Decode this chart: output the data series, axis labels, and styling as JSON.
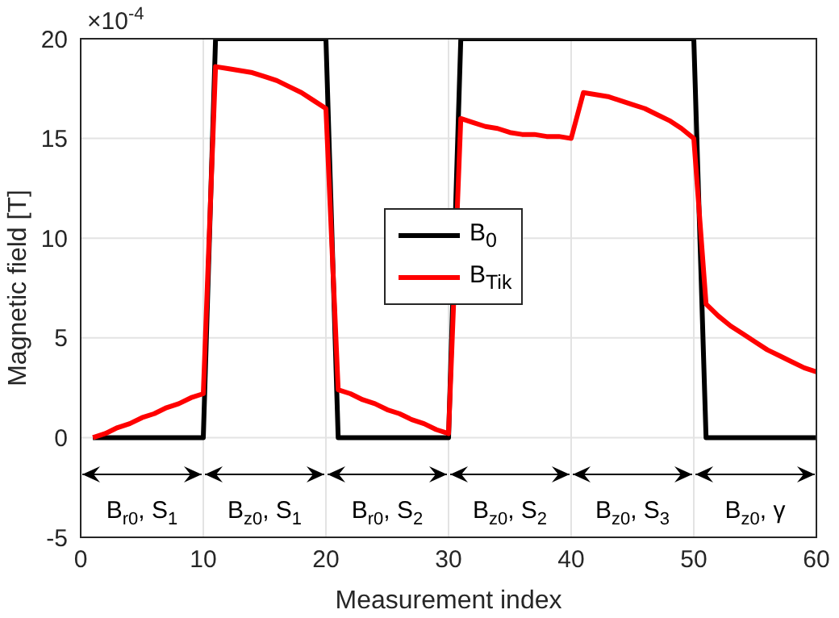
{
  "chart_data": {
    "type": "line",
    "xlabel": "Measurement index",
    "ylabel": "Magnetic field [T]",
    "x": [
      1,
      2,
      3,
      4,
      5,
      6,
      7,
      8,
      9,
      10,
      11,
      12,
      13,
      14,
      15,
      16,
      17,
      18,
      19,
      20,
      21,
      22,
      23,
      24,
      25,
      26,
      27,
      28,
      29,
      30,
      31,
      32,
      33,
      34,
      35,
      36,
      37,
      38,
      39,
      40,
      41,
      42,
      43,
      44,
      45,
      46,
      47,
      48,
      49,
      50,
      51,
      52,
      53,
      54,
      55,
      56,
      57,
      58,
      59,
      60
    ],
    "series": [
      {
        "name": "B$_{0}$",
        "color": "#000000",
        "values": [
          0,
          0,
          0,
          0,
          0,
          0,
          0,
          0,
          0,
          0,
          20,
          20,
          20,
          20,
          20,
          20,
          20,
          20,
          20,
          20,
          0,
          0,
          0,
          0,
          0,
          0,
          0,
          0,
          0,
          0,
          20,
          20,
          20,
          20,
          20,
          20,
          20,
          20,
          20,
          20,
          20,
          20,
          20,
          20,
          20,
          20,
          20,
          20,
          20,
          20,
          0,
          0,
          0,
          0,
          0,
          0,
          0,
          0,
          0,
          0
        ]
      },
      {
        "name": "B$_{Tik}$",
        "color": "#ff0000",
        "values": [
          0,
          0.2,
          0.5,
          0.7,
          1.0,
          1.2,
          1.5,
          1.7,
          2.0,
          2.2,
          18.6,
          18.5,
          18.4,
          18.3,
          18.1,
          17.9,
          17.6,
          17.3,
          16.9,
          16.5,
          2.4,
          2.2,
          1.9,
          1.7,
          1.4,
          1.2,
          0.9,
          0.7,
          0.4,
          0.2,
          16.0,
          15.8,
          15.6,
          15.5,
          15.3,
          15.2,
          15.2,
          15.1,
          15.1,
          15.0,
          17.3,
          17.2,
          17.1,
          16.9,
          16.7,
          16.5,
          16.2,
          15.9,
          15.5,
          15.0,
          6.7,
          6.1,
          5.6,
          5.2,
          4.8,
          4.4,
          4.1,
          3.8,
          3.5,
          3.3
        ]
      }
    ],
    "xlim": [
      0,
      60
    ],
    "xticks": [
      0,
      10,
      20,
      30,
      40,
      50,
      60
    ],
    "ylim": [
      -5,
      20
    ],
    "yticks": [
      -5,
      0,
      5,
      10,
      15,
      20
    ],
    "annotations": [
      "×10$^{-4}$",
      "B$_{r0}$, S$_{1}$",
      "B$_{z0}$, S$_{1}$",
      "B$_{r0}$, S$_{2}$",
      "B$_{z0}$, S$_{2}$",
      "B$_{z0}$, S$_{3}$",
      "B$_{z0}$, γ"
    ],
    "grid": true,
    "legend": "center",
    "marker": "none",
    "line_style": "solid"
  }
}
